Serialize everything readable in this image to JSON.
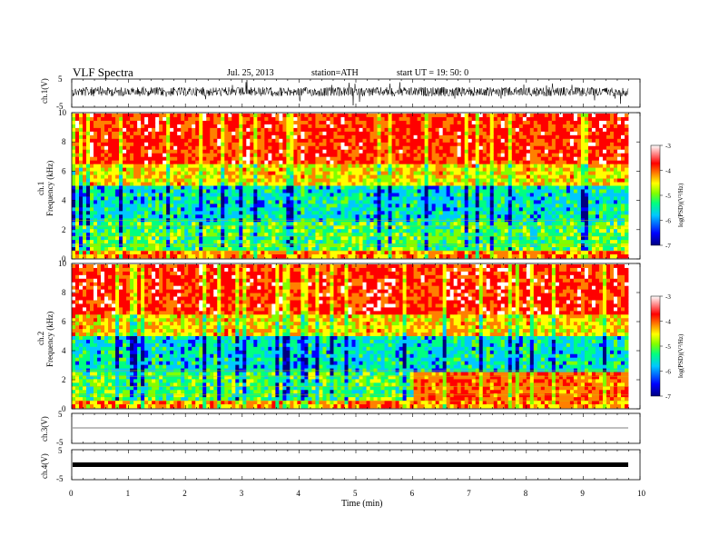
{
  "header": {
    "title": "VLF  Spectra",
    "date": "Jul.  25, 2013",
    "station": "station=ATH",
    "start": "start  UT  =    19: 50: 0"
  },
  "colorbar": {
    "label": "log(PSD)(V²/Hz)",
    "ticks": [
      "-3",
      "-4",
      "-5",
      "-6",
      "-7"
    ]
  },
  "chart_data": [
    {
      "type": "line",
      "name": "ch1",
      "ylabel": "ch.1(V)",
      "ylim": [
        -5,
        5
      ],
      "yticks": [
        "5",
        "-5"
      ],
      "description_values": {
        "baseline": 0,
        "amplitude_peak": 3
      }
    },
    {
      "type": "heatmap",
      "name": "ch1-spectrogram",
      "ylabel_top": "ch.1",
      "ylabel": "Frequency  (kHz)",
      "ylim": [
        0,
        10
      ],
      "yticks": [
        "0",
        "2",
        "4",
        "6",
        "8",
        "10"
      ],
      "zlim": [
        -7,
        -3
      ],
      "colormap": [
        "#000080",
        "#0000ff",
        "#00c8ff",
        "#00ff80",
        "#80ff00",
        "#ffff00",
        "#ff8000",
        "#ff0000",
        "#ffffff"
      ]
    },
    {
      "type": "heatmap",
      "name": "ch2-spectrogram",
      "ylabel_top": "ch.2",
      "ylabel": "Frequency  (kHz)",
      "ylim": [
        0,
        10
      ],
      "yticks": [
        "0",
        "2",
        "4",
        "6",
        "8",
        "10"
      ],
      "zlim": [
        -7,
        -3
      ]
    },
    {
      "type": "line",
      "name": "ch3",
      "ylabel": "ch.3(V)",
      "ylim": [
        -5,
        5
      ],
      "yticks": [
        "5",
        "-5"
      ]
    },
    {
      "type": "line",
      "name": "ch4",
      "ylabel": "ch.4(V)",
      "ylim": [
        -5,
        5
      ],
      "yticks": [
        "5",
        "-5"
      ]
    }
  ],
  "xaxis": {
    "label": "Time  (min)",
    "xlim": [
      0,
      10
    ],
    "ticks": [
      "0",
      "1",
      "2",
      "3",
      "4",
      "5",
      "6",
      "7",
      "8",
      "9",
      "10"
    ]
  }
}
